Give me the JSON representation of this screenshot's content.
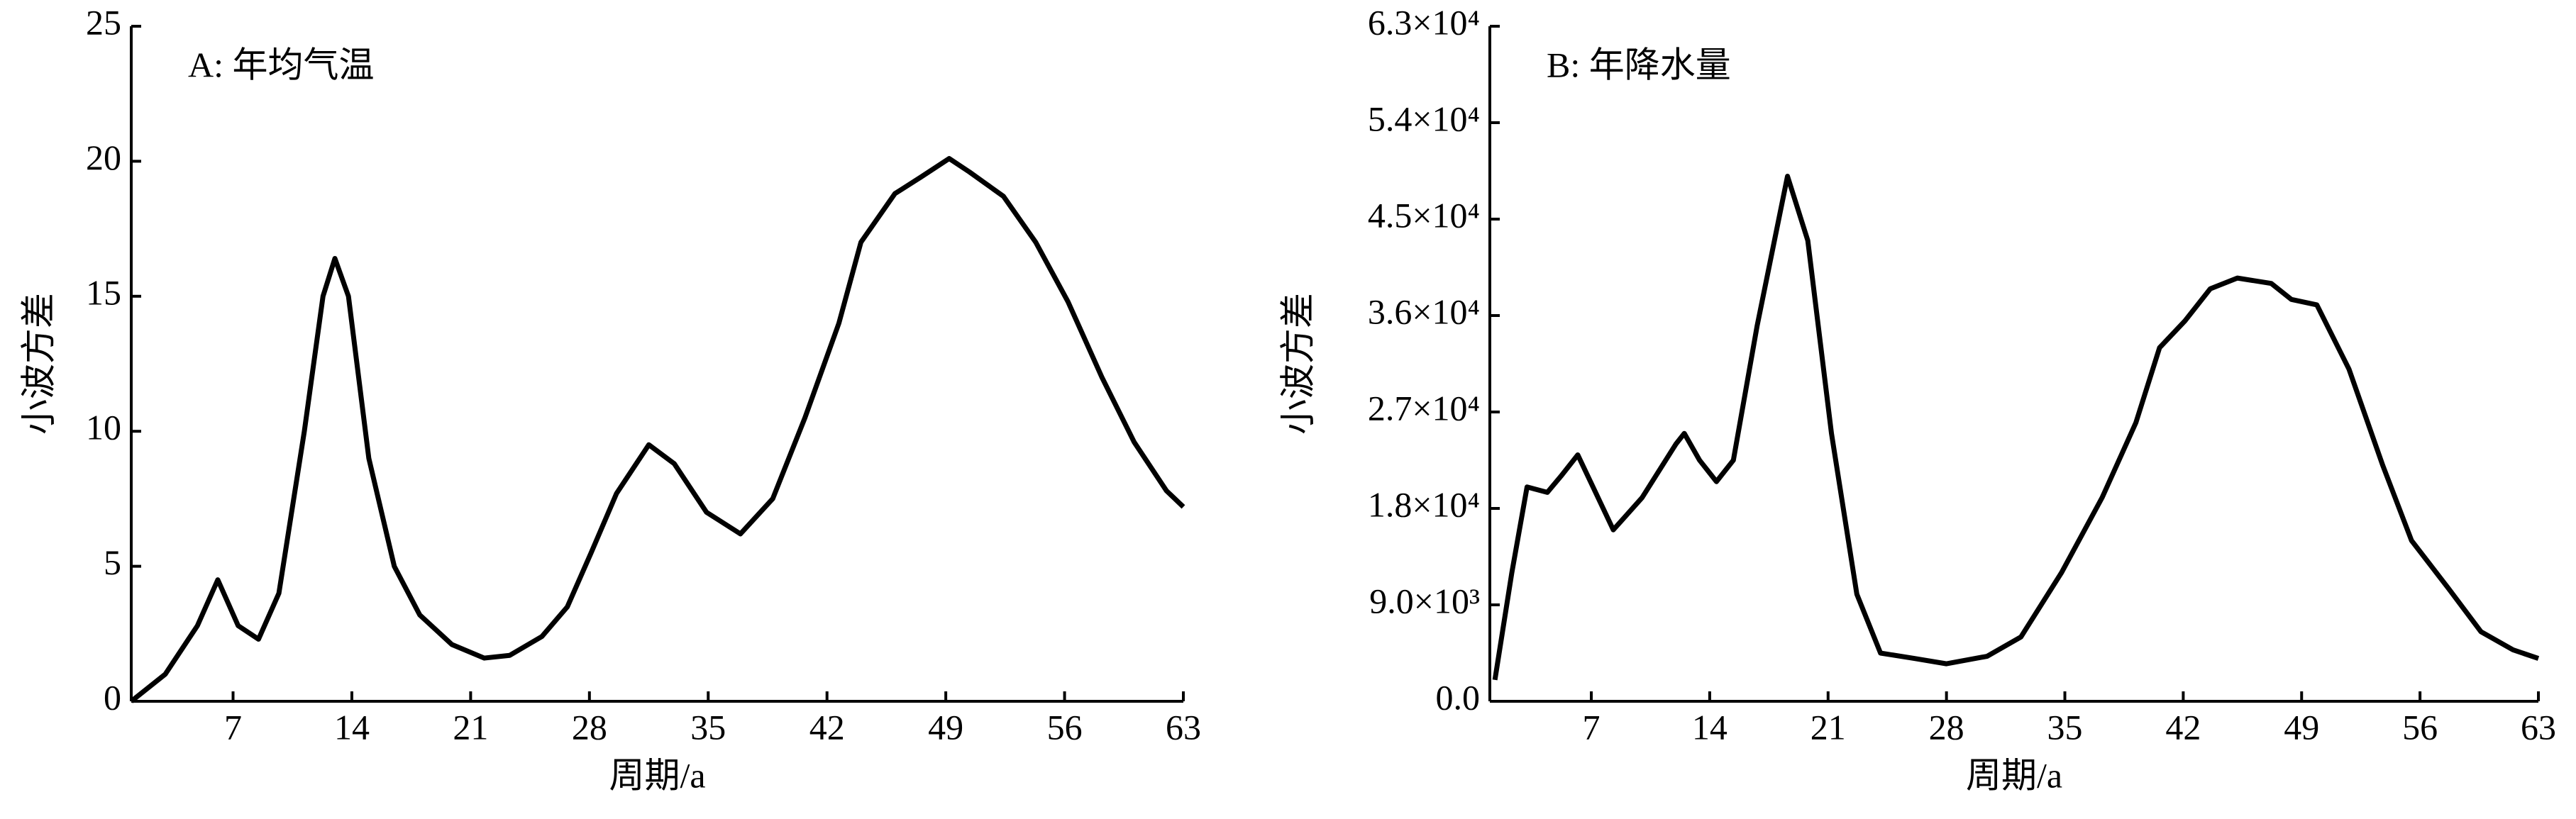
{
  "chart_data": [
    {
      "type": "line",
      "title": "A: 年均气温",
      "x_label": "周期/a",
      "y_label": "小波方差",
      "color": "#000000",
      "x": [
        1,
        3,
        4.9,
        6.1,
        7.3,
        8.5,
        9.7,
        11.2,
        12.3,
        13,
        13.8,
        15,
        16.5,
        18,
        19.9,
        21.8,
        23.3,
        25.2,
        26.7,
        28.1,
        29.6,
        31.5,
        33,
        34.9,
        36.9,
        38.8,
        40.7,
        42.7,
        44,
        46,
        47.5,
        49.2,
        50.4,
        52.4,
        54.3,
        56.2,
        58.2,
        60.1,
        62,
        63
      ],
      "values": [
        0,
        1,
        2.8,
        4.5,
        2.8,
        2.3,
        4,
        10,
        15,
        16.4,
        15,
        9,
        5,
        3.2,
        2.1,
        1.6,
        1.7,
        2.4,
        3.5,
        5.5,
        7.7,
        9.5,
        8.8,
        7,
        6.2,
        7.5,
        10.5,
        14,
        17,
        18.8,
        19.4,
        20.1,
        19.6,
        18.7,
        17,
        14.8,
        12,
        9.6,
        7.8,
        7.2
      ],
      "xlim": [
        1,
        63
      ],
      "xticks": [
        7,
        14,
        21,
        28,
        35,
        42,
        49,
        56,
        63
      ],
      "ylim": [
        0,
        25
      ],
      "yticks": [
        0,
        5,
        10,
        15,
        20,
        25
      ]
    },
    {
      "type": "line",
      "title": "B: 年降水量",
      "x_label": "周期/a",
      "y_label": "小波方差",
      "color": "#000000",
      "x": [
        1.3,
        2.3,
        3.2,
        4.4,
        5.2,
        6.2,
        7.1,
        8.3,
        10,
        12,
        12.5,
        13.4,
        14.4,
        15.4,
        16.8,
        18.6,
        19.8,
        21.2,
        22.7,
        24.1,
        26.1,
        28,
        30.4,
        32.4,
        34.8,
        37.2,
        39.2,
        40.6,
        42.1,
        43.6,
        45.2,
        47.2,
        48.4,
        49.9,
        51.8,
        53.8,
        55.5,
        57.7,
        59.6,
        61.5,
        63
      ],
      "values": [
        2000,
        12000,
        20000,
        19500,
        21000,
        23000,
        20000,
        16000,
        19000,
        24000,
        25000,
        22500,
        20500,
        22500,
        35000,
        49000,
        43000,
        25000,
        10000,
        4500,
        4000,
        3500,
        4200,
        6000,
        12000,
        19000,
        26000,
        33000,
        35500,
        38500,
        39500,
        39000,
        37500,
        37000,
        31000,
        22000,
        15000,
        10500,
        6500,
        4800,
        4000
      ],
      "xlim": [
        1,
        63
      ],
      "xticks": [
        7,
        14,
        21,
        28,
        35,
        42,
        49,
        56,
        63
      ],
      "ylim": [
        0,
        63000
      ],
      "yticks": [
        {
          "value": 0,
          "label": "0.0"
        },
        {
          "value": 9000,
          "label": "9.0×10³"
        },
        {
          "value": 18000,
          "label": "1.8×10⁴"
        },
        {
          "value": 27000,
          "label": "2.7×10⁴"
        },
        {
          "value": 36000,
          "label": "3.6×10⁴"
        },
        {
          "value": 45000,
          "label": "4.5×10⁴"
        },
        {
          "value": 54000,
          "label": "5.4×10⁴"
        },
        {
          "value": 63000,
          "label": "6.3×10⁴"
        }
      ]
    }
  ]
}
